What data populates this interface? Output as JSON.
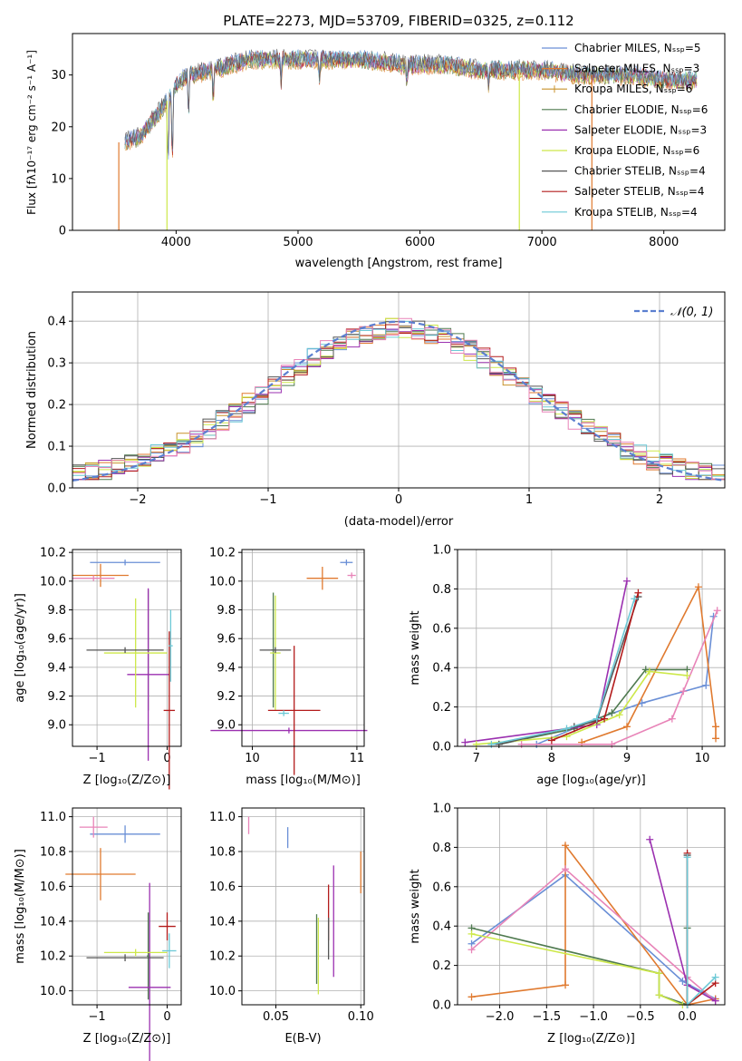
{
  "colors": {
    "CM": "#6a8fd6",
    "SM": "#e07a2f",
    "KM": "#c8922a",
    "CE": "#4f7a4f",
    "SE": "#9b30b0",
    "KE": "#cde84a",
    "CS": "#555555",
    "SS": "#b31b1b",
    "KS": "#6cc9d6",
    "normal": "#5b7fd0",
    "spectrum": "#5a5a5a"
  },
  "chart_data": [
    {
      "id": "spectrum",
      "type": "line",
      "title": "PLATE=2273, MJD=53709, FIBERID=0325, z=0.112",
      "xlabel": "wavelength [Angstrom, rest frame]",
      "ylabel": "Flux [fλ10⁻¹⁷ erg cm⁻² s⁻¹ A⁻¹]",
      "xlim": [
        3150,
        8500
      ],
      "ylim": [
        0,
        38
      ],
      "xticks": [
        4000,
        5000,
        6000,
        7000,
        8000
      ],
      "yticks": [
        0,
        10,
        20,
        30
      ],
      "legend_position": "upper-right",
      "legend": [
        {
          "label": "Chabrier MILES, Nₛₛₚ=5",
          "color": "CM"
        },
        {
          "label": "Salpeter MILES, Nₛₛₚ=3",
          "color": "SM"
        },
        {
          "label": "Kroupa MILES, Nₛₛₚ=6",
          "color": "KM"
        },
        {
          "label": "Chabrier ELODIE, Nₛₛₚ=6",
          "color": "CE"
        },
        {
          "label": "Salpeter ELODIE, Nₛₛₚ=3",
          "color": "SE"
        },
        {
          "label": "Kroupa ELODIE, Nₛₛₚ=6",
          "color": "KE"
        },
        {
          "label": "Chabrier STELIB, Nₛₛₚ=4",
          "color": "CS"
        },
        {
          "label": "Salpeter STELIB, Nₛₛₚ=4",
          "color": "SS"
        },
        {
          "label": "Kroupa STELIB, Nₛₛₚ=4",
          "color": "KS"
        }
      ],
      "continuum": [
        [
          3580,
          17
        ],
        [
          3700,
          18
        ],
        [
          3800,
          21
        ],
        [
          3900,
          24
        ],
        [
          3950,
          26
        ],
        [
          4000,
          28
        ],
        [
          4100,
          30
        ],
        [
          4300,
          31
        ],
        [
          4600,
          33
        ],
        [
          4900,
          33
        ],
        [
          5200,
          33
        ],
        [
          5500,
          33
        ],
        [
          5900,
          32
        ],
        [
          6200,
          32
        ],
        [
          6500,
          31
        ],
        [
          6800,
          31
        ],
        [
          7000,
          31
        ],
        [
          7300,
          30
        ],
        [
          7700,
          30
        ],
        [
          8000,
          29
        ],
        [
          8270,
          29
        ]
      ],
      "absorption": [
        [
          3934,
          14
        ],
        [
          3969,
          14
        ],
        [
          4102,
          8
        ],
        [
          4304,
          6
        ],
        [
          4861,
          5
        ],
        [
          5175,
          4
        ],
        [
          5893,
          3
        ],
        [
          6563,
          3
        ]
      ],
      "dropouts": [
        {
          "x": 3530,
          "color": "SM"
        },
        {
          "x": 3925,
          "color": "KE"
        },
        {
          "x": 6815,
          "color": "KE"
        },
        {
          "x": 7410,
          "color": "SM"
        }
      ]
    },
    {
      "id": "residuals",
      "type": "histogram",
      "xlabel": "(data-model)/error",
      "ylabel": "Normed distribution",
      "xlim": [
        -2.5,
        2.5
      ],
      "ylim": [
        0,
        0.47
      ],
      "xticks": [
        -2,
        -1,
        0,
        1,
        2
      ],
      "yticks": [
        0.0,
        0.1,
        0.2,
        0.3,
        0.4
      ],
      "grid": true,
      "legend_position": "upper-right",
      "legend": [
        {
          "label": "𝒩(0, 1)",
          "color": "normal"
        }
      ],
      "bin_width": 0.1,
      "series_colors": [
        "CM",
        "SM",
        "KM",
        "CE",
        "SE",
        "KE",
        "CS",
        "SS",
        "KS",
        "PINK"
      ]
    },
    {
      "id": "age-Z",
      "type": "errorbar",
      "xlabel": "Z [log₁₀(Z/Z⊙)]",
      "ylabel": "age  [log₁₀(age/yr)]",
      "xlim": [
        -1.35,
        0.2
      ],
      "ylim": [
        8.85,
        10.22
      ],
      "xticks": [
        -1,
        0
      ],
      "yticks": [
        9.0,
        9.2,
        9.4,
        9.6,
        9.8,
        10.0,
        10.2
      ],
      "points": [
        {
          "c": "CM",
          "x": -0.6,
          "xe": 0.5,
          "y": 10.13,
          "ye": 0.02
        },
        {
          "c": "SM",
          "x": -0.95,
          "xe": 0.4,
          "y": 10.04,
          "ye": 0.08
        },
        {
          "c": "PINK",
          "x": -1.05,
          "xe": 0.3,
          "y": 10.02,
          "ye": 0.02
        },
        {
          "c": "CE",
          "x": -0.27,
          "xe": 0.02,
          "y": 9.52,
          "ye": 0.42
        },
        {
          "c": "SE",
          "x": -0.27,
          "xe": 0.3,
          "y": 9.35,
          "ye": 0.6
        },
        {
          "c": "KE",
          "x": -0.45,
          "xe": 0.45,
          "y": 9.5,
          "ye": 0.38
        },
        {
          "c": "CS",
          "x": -0.6,
          "xe": 0.55,
          "y": 9.52,
          "ye": 0.02
        },
        {
          "c": "SS",
          "x": 0.03,
          "xe": 0.08,
          "y": 9.1,
          "ye": 0.55
        },
        {
          "c": "KS",
          "x": 0.05,
          "xe": 0.03,
          "y": 9.55,
          "ye": 0.25
        }
      ]
    },
    {
      "id": "age-mass",
      "type": "errorbar",
      "xlabel": "mass [log₁₀(M/M⊙)]",
      "ylabel": "",
      "xlim": [
        9.9,
        11.07
      ],
      "ylim": [
        8.85,
        10.22
      ],
      "xticks": [
        10,
        11
      ],
      "yticks": [
        9.0,
        9.2,
        9.4,
        9.6,
        9.8,
        10.0,
        10.2
      ],
      "points": [
        {
          "c": "CM",
          "x": 10.9,
          "xe": 0.06,
          "y": 10.13,
          "ye": 0.02
        },
        {
          "c": "SM",
          "x": 10.67,
          "xe": 0.15,
          "y": 10.02,
          "ye": 0.08
        },
        {
          "c": "PINK",
          "x": 10.95,
          "xe": 0.04,
          "y": 10.04,
          "ye": 0.02
        },
        {
          "c": "CE",
          "x": 10.2,
          "xe": 0.02,
          "y": 9.52,
          "ye": 0.4
        },
        {
          "c": "SE",
          "x": 10.35,
          "xe": 0.75,
          "y": 8.96,
          "ye": 0.02
        },
        {
          "c": "KE",
          "x": 10.22,
          "xe": 0.05,
          "y": 9.5,
          "ye": 0.4
        },
        {
          "c": "CS",
          "x": 10.22,
          "xe": 0.15,
          "y": 9.52,
          "ye": 0.02
        },
        {
          "c": "SS",
          "x": 10.4,
          "xe": 0.25,
          "y": 9.1,
          "ye": 0.45
        },
        {
          "c": "KS",
          "x": 10.3,
          "xe": 0.05,
          "y": 9.08,
          "ye": 0.02
        }
      ]
    },
    {
      "id": "mw-age",
      "type": "line",
      "xlabel": "age  [log₁₀(age/yr)]",
      "ylabel": "mass weight",
      "xlim": [
        6.75,
        10.3
      ],
      "ylim": [
        0,
        1.0
      ],
      "xticks": [
        7,
        8,
        9,
        10
      ],
      "yticks": [
        0.0,
        0.2,
        0.4,
        0.6,
        0.8,
        1.0
      ],
      "grid": true,
      "series": [
        {
          "c": "CM",
          "pts": [
            [
              7.8,
              0.01
            ],
            [
              8.6,
              0.14
            ],
            [
              9.2,
              0.22
            ],
            [
              10.05,
              0.31
            ],
            [
              10.15,
              0.66
            ]
          ]
        },
        {
          "c": "SM",
          "pts": [
            [
              8.4,
              0.02
            ],
            [
              9.0,
              0.1
            ],
            [
              9.95,
              0.81
            ],
            [
              10.18,
              0.1
            ],
            [
              10.18,
              0.04
            ]
          ]
        },
        {
          "c": "PINK",
          "pts": [
            [
              7.6,
              0.01
            ],
            [
              8.8,
              0.01
            ],
            [
              9.6,
              0.14
            ],
            [
              9.75,
              0.28
            ],
            [
              10.2,
              0.69
            ]
          ]
        },
        {
          "c": "CE",
          "pts": [
            [
              7.3,
              0.01
            ],
            [
              8.3,
              0.09
            ],
            [
              8.8,
              0.17
            ],
            [
              9.25,
              0.39
            ],
            [
              9.8,
              0.39
            ]
          ]
        },
        {
          "c": "SE",
          "pts": [
            [
              6.85,
              0.02
            ],
            [
              8.6,
              0.11
            ],
            [
              9.0,
              0.84
            ]
          ]
        },
        {
          "c": "KE",
          "pts": [
            [
              7.0,
              0.01
            ],
            [
              8.2,
              0.05
            ],
            [
              8.9,
              0.16
            ],
            [
              9.3,
              0.38
            ],
            [
              9.8,
              0.36
            ]
          ]
        },
        {
          "c": "CS",
          "pts": [
            [
              7.3,
              0.01
            ],
            [
              8.3,
              0.1
            ],
            [
              8.6,
              0.13
            ],
            [
              9.15,
              0.76
            ]
          ]
        },
        {
          "c": "SS",
          "pts": [
            [
              8.0,
              0.03
            ],
            [
              8.7,
              0.14
            ],
            [
              9.15,
              0.78
            ]
          ]
        },
        {
          "c": "KS",
          "pts": [
            [
              7.2,
              0.01
            ],
            [
              8.2,
              0.09
            ],
            [
              8.6,
              0.14
            ],
            [
              9.1,
              0.75
            ]
          ]
        }
      ]
    },
    {
      "id": "mass-Z",
      "type": "errorbar",
      "xlabel": "Z [log₁₀(Z/Z⊙)]",
      "ylabel": "mass [log₁₀(M/M⊙)]",
      "xlim": [
        -1.35,
        0.2
      ],
      "ylim": [
        9.92,
        11.05
      ],
      "xticks": [
        -1,
        0
      ],
      "yticks": [
        10.0,
        10.2,
        10.4,
        10.6,
        10.8,
        11.0
      ],
      "points": [
        {
          "c": "CM",
          "x": -0.6,
          "xe": 0.5,
          "y": 10.9,
          "ye": 0.05
        },
        {
          "c": "SM",
          "x": -0.95,
          "xe": 0.5,
          "y": 10.67,
          "ye": 0.15
        },
        {
          "c": "PINK",
          "x": -1.05,
          "xe": 0.2,
          "y": 10.94,
          "ye": 0.06
        },
        {
          "c": "CE",
          "x": -0.27,
          "xe": 0.02,
          "y": 10.2,
          "ye": 0.25
        },
        {
          "c": "SE",
          "x": -0.25,
          "xe": 0.3,
          "y": 10.02,
          "ye": 0.6
        },
        {
          "c": "KE",
          "x": -0.45,
          "xe": 0.45,
          "y": 10.22,
          "ye": 0.02
        },
        {
          "c": "CS",
          "x": -0.6,
          "xe": 0.55,
          "y": 10.19,
          "ye": 0.02
        },
        {
          "c": "SS",
          "x": 0.0,
          "xe": 0.12,
          "y": 10.37,
          "ye": 0.08
        },
        {
          "c": "KS",
          "x": 0.03,
          "xe": 0.1,
          "y": 10.23,
          "ye": 0.1
        }
      ]
    },
    {
      "id": "mass-ebv",
      "type": "errorbar",
      "xlabel": "E(B-V)",
      "ylabel": "",
      "xlim": [
        0.03,
        0.102
      ],
      "ylim": [
        9.92,
        11.05
      ],
      "xticks": [
        0.05,
        0.1
      ],
      "yticks": [
        10.0,
        10.2,
        10.4,
        10.6,
        10.8,
        11.0
      ],
      "points": [
        {
          "c": "PINK",
          "x": 0.034,
          "xe": 0.0,
          "y": 10.95,
          "ye": 0.05
        },
        {
          "c": "CM",
          "x": 0.057,
          "xe": 0.0,
          "y": 10.88,
          "ye": 0.06
        },
        {
          "c": "SM",
          "x": 0.1,
          "xe": 0.0,
          "y": 10.68,
          "ye": 0.12
        },
        {
          "c": "CE",
          "x": 0.074,
          "xe": 0.0,
          "y": 10.24,
          "ye": 0.2
        },
        {
          "c": "KE",
          "x": 0.075,
          "xe": 0.0,
          "y": 10.2,
          "ye": 0.22
        },
        {
          "c": "SS",
          "x": 0.081,
          "xe": 0.0,
          "y": 10.45,
          "ye": 0.16
        },
        {
          "c": "CS",
          "x": 0.081,
          "xe": 0.0,
          "y": 10.3,
          "ye": 0.12
        },
        {
          "c": "SE",
          "x": 0.084,
          "xe": 0.0,
          "y": 10.4,
          "ye": 0.32
        }
      ]
    },
    {
      "id": "mw-Z",
      "type": "line",
      "xlabel": "Z [log₁₀(Z/Z⊙)]",
      "ylabel": "mass weight",
      "xlim": [
        -2.45,
        0.4
      ],
      "ylim": [
        0,
        1.0
      ],
      "xticks": [
        -2.0,
        -1.5,
        -1.0,
        -0.5,
        0.0
      ],
      "yticks": [
        0.0,
        0.2,
        0.4,
        0.6,
        0.8,
        1.0
      ],
      "grid": true,
      "series": [
        {
          "c": "CM",
          "pts": [
            [
              -2.3,
              0.31
            ],
            [
              -1.3,
              0.66
            ],
            [
              -0.05,
              0.12
            ],
            [
              0.3,
              0.03
            ]
          ]
        },
        {
          "c": "SM",
          "pts": [
            [
              -2.3,
              0.04
            ],
            [
              -1.3,
              0.1
            ],
            [
              -1.3,
              0.81
            ],
            [
              0.0,
              0.0
            ],
            [
              0.3,
              0.03
            ]
          ]
        },
        {
          "c": "PINK",
          "pts": [
            [
              -2.3,
              0.28
            ],
            [
              -1.3,
              0.69
            ],
            [
              0.0,
              0.14
            ],
            [
              0.3,
              0.02
            ]
          ]
        },
        {
          "c": "CE",
          "pts": [
            [
              -2.3,
              0.39
            ],
            [
              -0.3,
              0.16
            ],
            [
              -0.3,
              0.05
            ],
            [
              0.0,
              0.0
            ],
            [
              0.0,
              0.39
            ]
          ]
        },
        {
          "c": "SE",
          "pts": [
            [
              -0.4,
              0.84
            ],
            [
              0.0,
              0.1
            ],
            [
              0.3,
              0.02
            ]
          ]
        },
        {
          "c": "KE",
          "pts": [
            [
              -2.3,
              0.36
            ],
            [
              -0.3,
              0.16
            ],
            [
              -0.3,
              0.05
            ],
            [
              -0.05,
              0.0
            ]
          ]
        },
        {
          "c": "CS",
          "pts": [
            [
              0.0,
              0.76
            ],
            [
              0.0,
              0.0
            ]
          ]
        },
        {
          "c": "SS",
          "pts": [
            [
              0.0,
              0.77
            ],
            [
              0.0,
              0.0
            ],
            [
              0.3,
              0.11
            ]
          ]
        },
        {
          "c": "KS",
          "pts": [
            [
              0.0,
              0.75
            ],
            [
              0.0,
              0.0
            ],
            [
              0.3,
              0.14
            ]
          ]
        }
      ]
    }
  ]
}
